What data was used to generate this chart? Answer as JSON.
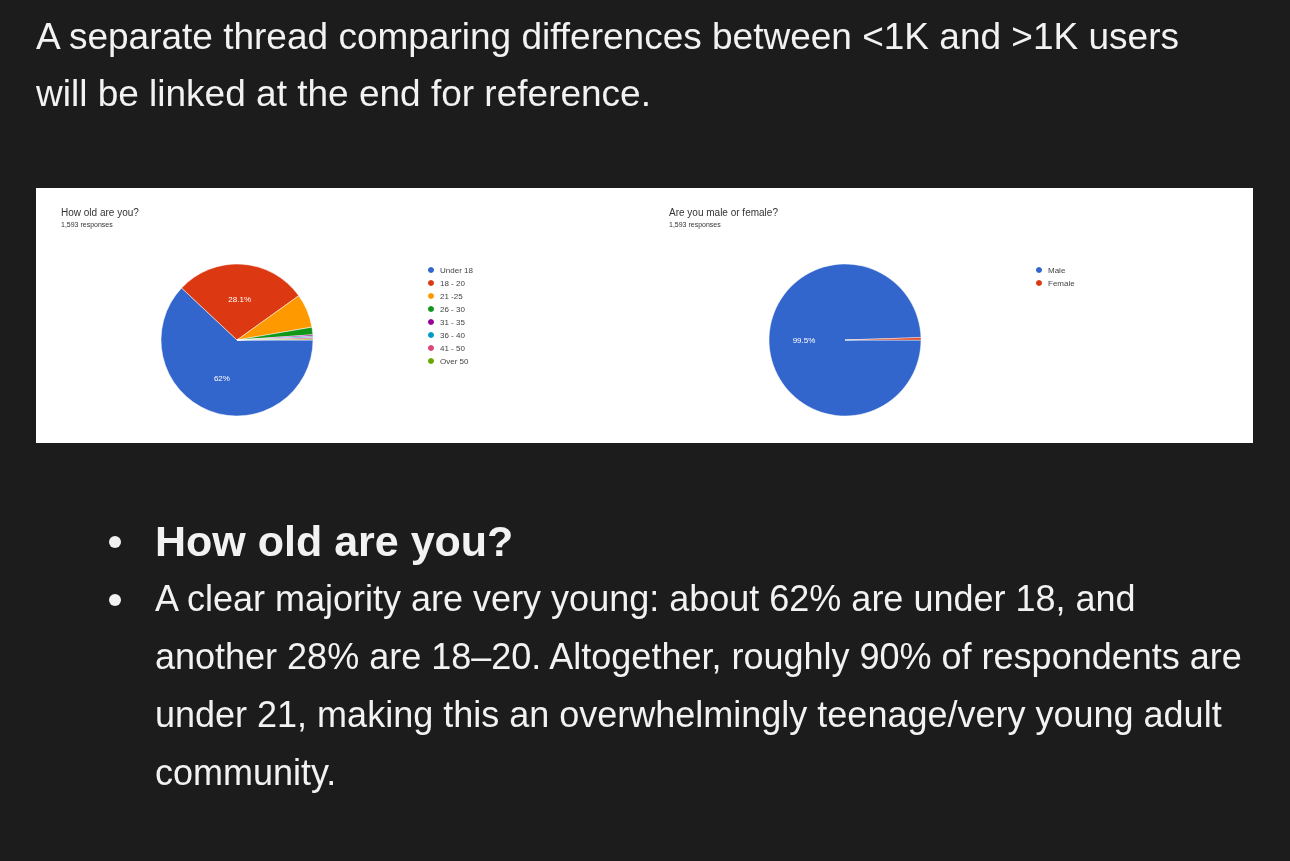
{
  "chart_data": [
    {
      "type": "pie",
      "title": "How old are you?",
      "subtitle": "1,593 responses",
      "legend": "right",
      "categories": [
        "Under 18",
        "18 - 20",
        "21 -25",
        "26 - 30",
        "31 - 35",
        "36 - 40",
        "41 - 50",
        "Over 50"
      ],
      "values": [
        62,
        28.1,
        7.2,
        1.6,
        0.3,
        0.3,
        0.3,
        0.2
      ],
      "colors": [
        "#3366cc",
        "#dc3912",
        "#ff9900",
        "#109618",
        "#990099",
        "#0099c6",
        "#dd4477",
        "#66aa00"
      ],
      "value_labels": [
        "62%",
        "28.1%",
        null,
        null,
        null,
        null,
        null,
        null
      ],
      "annotations": [
        "A separate thread comparing differences between <1K and >1K users will be linked at the end for reference.",
        "How old are you?",
        "A clear majority are very young: about 62% are under 18, and another 28% are 18–20. Altogether, roughly 90% of respondents are under 21, making this an overwhelmingly teenage/very young adult community."
      ]
    },
    {
      "type": "pie",
      "title": "Are you male or female?",
      "subtitle": "1,593 responses",
      "legend": "right",
      "categories": [
        "Male",
        "Female"
      ],
      "values": [
        99.5,
        0.5
      ],
      "colors": [
        "#3366cc",
        "#dc3912"
      ],
      "value_labels": [
        "99.5%",
        null
      ]
    }
  ]
}
